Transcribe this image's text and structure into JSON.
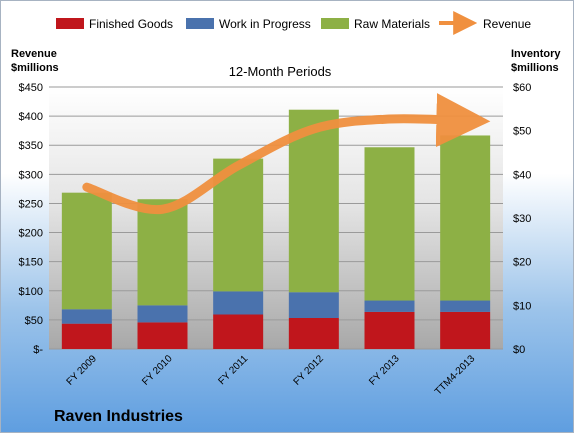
{
  "company": "Raven Industries",
  "chart_data": {
    "type": "bar",
    "title": "12-Month Periods",
    "left_axis_label": [
      "Revenue",
      "$millions"
    ],
    "right_axis_label": [
      "Inventory",
      "$millions"
    ],
    "categories": [
      "FY 2009",
      "FY 2010",
      "FY 2011",
      "FY 2012",
      "FY 2013",
      "TTM4-2013"
    ],
    "left_ticks": [
      "$-",
      "$50",
      "$100",
      "$150",
      "$200",
      "$250",
      "$300",
      "$350",
      "$400",
      "$450"
    ],
    "right_ticks": [
      "$0",
      "$10",
      "$20",
      "$30",
      "$40",
      "$50",
      "$60"
    ],
    "left_ylim": [
      0,
      450
    ],
    "right_ylim": [
      0,
      60
    ],
    "stacked": true,
    "series": [
      {
        "name": "Finished Goods",
        "axis": "right",
        "color": "#c0161c",
        "values": [
          5.8,
          6.1,
          7.9,
          7.1,
          8.5,
          8.5
        ]
      },
      {
        "name": "Work in Progress",
        "axis": "right",
        "color": "#4a72ad",
        "values": [
          3.3,
          3.9,
          5.3,
          5.9,
          2.6,
          2.6
        ]
      },
      {
        "name": "Raw Materials",
        "axis": "right",
        "color": "#8db045",
        "values": [
          26.7,
          24.3,
          30.4,
          41.8,
          35.1,
          37.8
        ]
      },
      {
        "name": "Revenue",
        "type": "line",
        "axis": "left",
        "color": "#f0903f",
        "values": [
          278,
          240,
          315,
          378,
          395,
          392
        ]
      }
    ],
    "legend_position": "top",
    "grid": true
  }
}
